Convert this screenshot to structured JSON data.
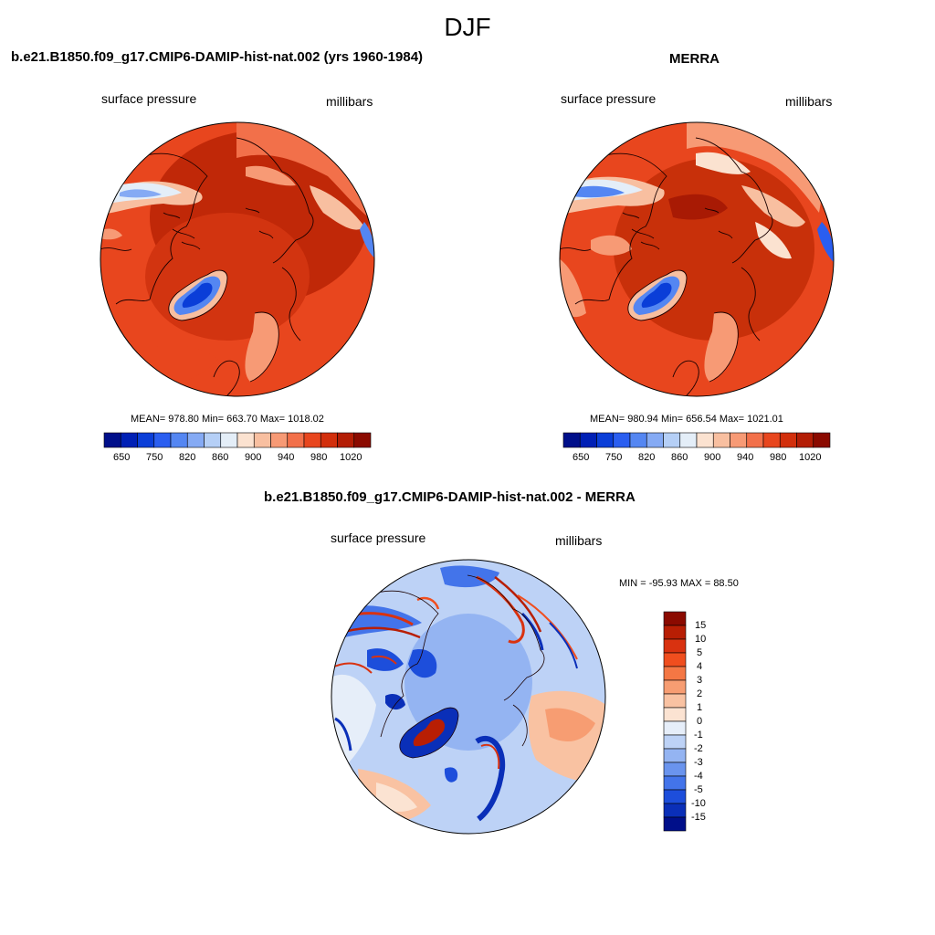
{
  "figure": {
    "season_title": "DJF"
  },
  "panels": {
    "model": {
      "title": "b.e21.B1850.f09_g17.CMIP6-DAMIP-hist-nat.002 (yrs 1960-1984)",
      "variable": "surface pressure",
      "units": "millibars",
      "stats": "MEAN= 978.80  Min= 663.70  Max= 1018.02"
    },
    "obs": {
      "title": "MERRA",
      "variable": "surface pressure",
      "units": "millibars",
      "stats": "MEAN= 980.94  Min= 656.54  Max= 1021.01"
    },
    "diff": {
      "title": "b.e21.B1850.f09_g17.CMIP6-DAMIP-hist-nat.002 - MERRA",
      "variable": "surface pressure",
      "units": "millibars",
      "stats": "MIN = -95.93 MAX =  88.50"
    }
  },
  "colorbars": {
    "abs": {
      "labels": [
        "650",
        "750",
        "820",
        "860",
        "900",
        "940",
        "980",
        "1020"
      ],
      "colors": [
        "#000f8a",
        "#0020b5",
        "#0a3ed8",
        "#2a5ef0",
        "#5486f2",
        "#85aaf4",
        "#b5cff6",
        "#e4eef8",
        "#fbe2d0",
        "#f8bfa0",
        "#f79a75",
        "#f2704a",
        "#e8461e",
        "#d22f0c",
        "#b31d05",
        "#8b0a00"
      ]
    },
    "diff": {
      "labels": [
        "15",
        "10",
        "5",
        "4",
        "3",
        "2",
        "1",
        "0",
        "-1",
        "-2",
        "-3",
        "-4",
        "-5",
        "-10",
        "-15"
      ],
      "colors": [
        "#8b0a00",
        "#b81e04",
        "#d93210",
        "#f04e1e",
        "#f47744",
        "#f79d72",
        "#f9c2a2",
        "#fbe3d2",
        "#e6eef9",
        "#bdd2f6",
        "#94b4f2",
        "#6a94ee",
        "#4374ea",
        "#1d4edb",
        "#0a2fb8",
        "#000f8a"
      ]
    }
  }
}
